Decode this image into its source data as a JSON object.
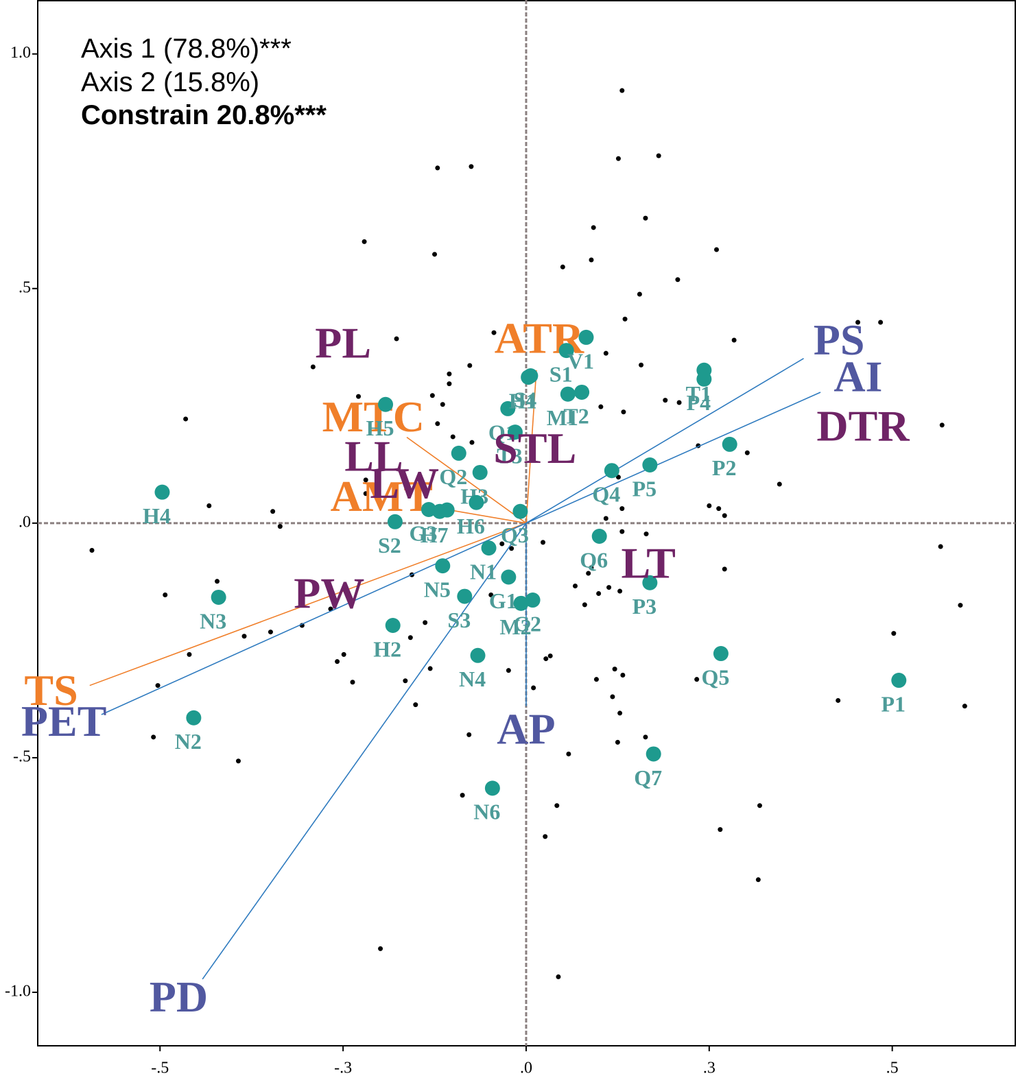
{
  "chart_data": {
    "type": "biplot",
    "annotations": [
      "Axis 1 (78.8%)***",
      "Axis 2 (15.8%)",
      "Constrain 20.8%***"
    ],
    "xlim": [
      -0.667,
      0.668
    ],
    "ylim": [
      -1.114,
      1.115
    ],
    "xticks": [
      {
        "value": -0.5,
        "label": "-.5"
      },
      {
        "value": -0.25,
        "label": "-.3"
      },
      {
        "value": 0,
        "label": ".0"
      },
      {
        "value": 0.25,
        "label": ".3"
      },
      {
        "value": 0.5,
        "label": ".5"
      }
    ],
    "yticks": [
      {
        "value": 1,
        "label": "1.0"
      },
      {
        "value": 0.5,
        "label": ".5"
      },
      {
        "value": 0,
        "label": ".0"
      },
      {
        "value": -0.5,
        "label": "-.5"
      },
      {
        "value": -1,
        "label": "-1.0"
      }
    ],
    "zero_lines": true,
    "species": {
      "color": "#000000",
      "x": [
        0.131,
        0.126,
        0.181,
        -0.121,
        -0.075,
        0.163,
        0.092,
        -0.221,
        0.26,
        -0.125,
        0.089,
        0.05,
        0.207,
        0.155,
        0.135,
        0.453,
        0.484,
        -0.044,
        -0.177,
        0.284,
        0.109,
        -0.291,
        -0.077,
        0.157,
        -0.105,
        -0.105,
        -0.229,
        0.19,
        0.209,
        -0.128,
        -0.114,
        0.102,
        0.133,
        -0.465,
        0.568,
        -0.121,
        -0.1,
        -0.074,
        0.235,
        0.302,
        0.126,
        0.346,
        -0.219,
        -0.219,
        -0.433,
        -0.346,
        0.131,
        0.25,
        0.263,
        0.271,
        0.109,
        -0.336,
        -0.593,
        -0.033,
        -0.02,
        0.023,
        0.131,
        0.164,
        -0.422,
        -0.493,
        -0.156,
        0.089,
        0.085,
        0.271,
        0.067,
        0.113,
        0.099,
        0.128,
        -0.048,
        0.08,
        0.593,
        -0.267,
        -0.306,
        -0.349,
        -0.385,
        -0.158,
        -0.138,
        0.502,
        -0.46,
        -0.249,
        -0.258,
        0.033,
        0.027,
        -0.131,
        -0.024,
        0.121,
        0.132,
        0.096,
        -0.237,
        -0.165,
        0.233,
        -0.503,
        0.01,
        0.118,
        0.426,
        -0.151,
        0.599,
        0.566,
        0.128,
        -0.078,
        -0.509,
        0.163,
        0.125,
        0.058,
        -0.393,
        -0.087,
        0.042,
        0.319,
        0.265,
        0.026,
        0.317,
        -0.199,
        0.044
      ],
      "y": [
        0.922,
        0.777,
        0.783,
        0.757,
        0.76,
        0.65,
        0.63,
        0.6,
        0.583,
        0.573,
        0.561,
        0.546,
        0.519,
        0.488,
        0.435,
        0.428,
        0.428,
        0.406,
        0.393,
        0.39,
        0.362,
        0.333,
        0.336,
        0.337,
        0.318,
        0.297,
        0.27,
        0.262,
        0.257,
        0.272,
        0.253,
        0.248,
        0.237,
        0.222,
        0.209,
        0.212,
        0.184,
        0.172,
        0.165,
        0.15,
        0.098,
        0.083,
        0.092,
        0.063,
        0.037,
        0.025,
        0.031,
        0.037,
        0.031,
        0.016,
        0.01,
        -0.007,
        -0.058,
        -0.044,
        -0.054,
        -0.041,
        -0.018,
        -0.023,
        -0.124,
        -0.153,
        -0.11,
        -0.095,
        -0.107,
        -0.098,
        -0.134,
        -0.137,
        -0.15,
        -0.145,
        -0.153,
        -0.174,
        -0.175,
        -0.183,
        -0.218,
        -0.232,
        -0.241,
        -0.244,
        -0.212,
        -0.235,
        -0.28,
        -0.28,
        -0.295,
        -0.283,
        -0.289,
        -0.31,
        -0.314,
        -0.311,
        -0.324,
        -0.333,
        -0.339,
        -0.336,
        -0.333,
        -0.346,
        -0.351,
        -0.37,
        -0.378,
        -0.387,
        -0.39,
        -0.05,
        -0.405,
        -0.451,
        -0.456,
        -0.456,
        -0.467,
        -0.492,
        -0.507,
        -0.58,
        -0.602,
        -0.602,
        -0.653,
        -0.668,
        -0.76,
        -0.907,
        -0.967
      ]
    },
    "sites": {
      "color": "#1e9a8e",
      "label_color": "#4d9b98",
      "names": [
        "H4",
        "H5",
        "Q1",
        "T3",
        "Q2",
        "H3",
        "H6",
        "G3",
        "H7",
        null,
        "S2",
        "Q3",
        "S4",
        "H1",
        "S1",
        "V1",
        "M1",
        "T2",
        "T1",
        "P4",
        "P2",
        "P5",
        "Q4",
        "Q6",
        "P3",
        "Q5",
        "P1",
        "Q7",
        "N6",
        "N4",
        "M2",
        "G2",
        "G1",
        "N1",
        "N5",
        "S3",
        "H2",
        "N3",
        "N2"
      ],
      "x": [
        -0.497,
        -0.192,
        -0.025,
        -0.015,
        -0.092,
        -0.063,
        -0.068,
        -0.133,
        -0.118,
        -0.108,
        -0.179,
        -0.008,
        0.006,
        0.003,
        0.055,
        0.082,
        0.057,
        0.076,
        0.243,
        0.243,
        0.278,
        0.169,
        0.117,
        0.1,
        0.169,
        0.266,
        0.509,
        0.174,
        -0.046,
        -0.066,
        -0.007,
        0.009,
        -0.024,
        -0.051,
        -0.114,
        -0.084,
        -0.182,
        -0.42,
        -0.454
      ],
      "y": [
        0.066,
        0.253,
        0.244,
        0.194,
        0.149,
        0.108,
        0.044,
        0.029,
        0.025,
        0.028,
        0.003,
        0.025,
        0.314,
        0.311,
        0.368,
        0.396,
        0.275,
        0.279,
        0.326,
        0.307,
        0.168,
        0.124,
        0.112,
        -0.028,
        -0.127,
        -0.278,
        -0.335,
        -0.492,
        -0.565,
        -0.282,
        -0.171,
        -0.164,
        -0.115,
        -0.053,
        -0.091,
        -0.156,
        -0.218,
        -0.158,
        -0.415
      ]
    },
    "vectors": [
      {
        "name": "MTC",
        "color": "#f07f2a",
        "label_color": "#f07f2a",
        "x": -0.163,
        "y": 0.183
      },
      {
        "name": "AMT",
        "color": "#f07f2a",
        "label_color": "#f07f2a",
        "x": -0.142,
        "y": 0.038
      },
      {
        "name": "ATR",
        "color": "#f07f2a",
        "label_color": "#f07f2a",
        "x": 0.014,
        "y": 0.326
      },
      {
        "name": "TS",
        "color": "#f07f2a",
        "label_color": "#f07f2a",
        "x": -0.596,
        "y": -0.346
      },
      {
        "name": "PS",
        "color": "#2f7bbf",
        "label_color": "#5158a0",
        "x": 0.379,
        "y": 0.351
      },
      {
        "name": "AI",
        "color": "#2f7bbf",
        "label_color": "#5158a0",
        "x": 0.402,
        "y": 0.279
      },
      {
        "name": "PET",
        "color": "#2f7bbf",
        "label_color": "#5158a0",
        "x": -0.58,
        "y": -0.408
      },
      {
        "name": "PD",
        "color": "#2f7bbf",
        "label_color": "#5158a0",
        "x": -0.442,
        "y": -0.972
      },
      {
        "name": "AP",
        "color": "#2f7bbf",
        "label_color": "#5158a0",
        "x": 0,
        "y": -0.39
      }
    ],
    "traits": {
      "color": "#6f2466",
      "names": [
        "PL",
        "LL",
        "LW",
        "STL",
        "PW",
        "LT",
        "DTR"
      ],
      "x": [
        -0.25,
        -0.208,
        -0.166,
        0.012,
        -0.269,
        0.167,
        0.46
      ],
      "y": [
        0.374,
        0.133,
        0.075,
        0.15,
        -0.159,
        -0.095,
        0.197
      ]
    }
  }
}
